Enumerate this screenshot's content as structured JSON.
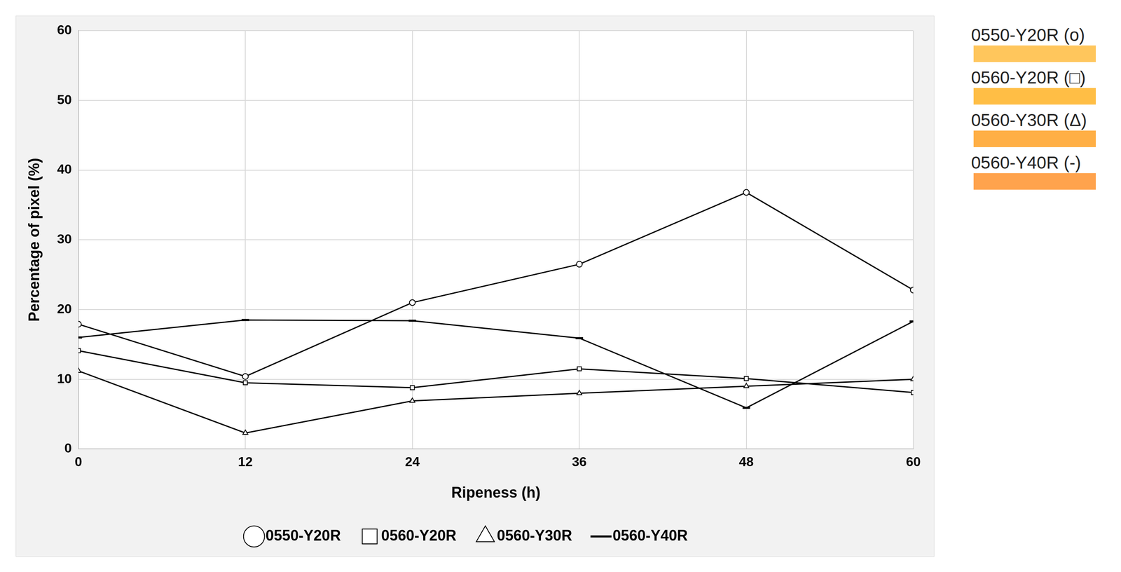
{
  "chart_data": {
    "type": "line",
    "x_label": "Ripeness (h)",
    "y_label": "Percentage of pixel (%)",
    "x": [
      0,
      12,
      24,
      36,
      48,
      60
    ],
    "xlim": [
      0,
      60
    ],
    "xticks": [
      0,
      12,
      24,
      36,
      48,
      60
    ],
    "ylim": [
      0,
      60
    ],
    "yticks": [
      0,
      10,
      20,
      30,
      40,
      50,
      60
    ],
    "grid": true,
    "legend": "bottom",
    "series": [
      {
        "name": "0550-Y20R",
        "color": "#000000",
        "marker": "circle",
        "values": [
          17.9,
          10.4,
          21.0,
          26.5,
          36.8,
          22.8
        ]
      },
      {
        "name": "0560-Y20R",
        "color": "#000000",
        "marker": "square",
        "values": [
          14.1,
          9.5,
          8.8,
          11.5,
          10.1,
          8.1
        ]
      },
      {
        "name": "0560-Y30R",
        "color": "#000000",
        "marker": "triangle",
        "values": [
          11.2,
          2.3,
          6.9,
          8.0,
          9.0,
          10.0
        ]
      },
      {
        "name": "0560-Y40R",
        "color": "#000000",
        "marker": "dash",
        "values": [
          16.0,
          18.5,
          18.4,
          15.9,
          5.9,
          18.3
        ]
      }
    ],
    "annotations": [
      {
        "text": "0550-Y20R (o)",
        "color": "#ffc65c"
      },
      {
        "text": "0560-Y20R (□)",
        "color": "#ffbe45"
      },
      {
        "text": "0560-Y30R (Δ)",
        "color": "#ffaf45"
      },
      {
        "text": "0560-Y40R (-)",
        "color": "#ffa34d"
      }
    ]
  }
}
